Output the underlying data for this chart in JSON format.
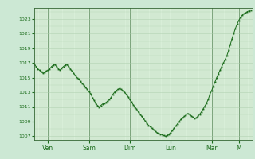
{
  "background_color": "#cce8d4",
  "plot_bg_color": "#d8eed8",
  "line_color": "#1a6b1a",
  "marker_color": "#1a6b1a",
  "grid_color": "#aaccaa",
  "tick_color": "#1a6b1a",
  "ylabel_values": [
    1007,
    1009,
    1011,
    1013,
    1015,
    1017,
    1019,
    1021,
    1023
  ],
  "ylim": [
    1006.5,
    1024.5
  ],
  "xlim": [
    0,
    128
  ],
  "x_ticks_pos": [
    8,
    32,
    56,
    80,
    104,
    120
  ],
  "x_tick_labels": [
    "Ven",
    "Sam",
    "Dim",
    "Lun",
    "Mar",
    "M"
  ],
  "day_lines": [
    8,
    32,
    56,
    80,
    104,
    120
  ],
  "pressure_data": [
    1016.8,
    1016.5,
    1016.2,
    1016.0,
    1015.8,
    1015.6,
    1015.7,
    1015.9,
    1016.0,
    1016.2,
    1016.5,
    1016.7,
    1016.8,
    1016.5,
    1016.2,
    1016.0,
    1016.3,
    1016.5,
    1016.7,
    1016.8,
    1016.5,
    1016.2,
    1015.9,
    1015.6,
    1015.3,
    1015.0,
    1014.8,
    1014.5,
    1014.2,
    1014.0,
    1013.7,
    1013.4,
    1013.1,
    1012.8,
    1012.3,
    1011.9,
    1011.5,
    1011.2,
    1011.0,
    1011.2,
    1011.4,
    1011.5,
    1011.6,
    1011.8,
    1012.0,
    1012.3,
    1012.7,
    1013.0,
    1013.2,
    1013.4,
    1013.5,
    1013.4,
    1013.2,
    1013.0,
    1012.7,
    1012.4,
    1012.0,
    1011.7,
    1011.3,
    1011.0,
    1010.7,
    1010.3,
    1010.0,
    1009.7,
    1009.4,
    1009.1,
    1008.8,
    1008.5,
    1008.3,
    1008.1,
    1007.9,
    1007.7,
    1007.5,
    1007.4,
    1007.3,
    1007.2,
    1007.1,
    1007.0,
    1007.1,
    1007.3,
    1007.5,
    1007.8,
    1008.1,
    1008.4,
    1008.7,
    1009.0,
    1009.3,
    1009.5,
    1009.7,
    1009.9,
    1010.1,
    1010.0,
    1009.8,
    1009.6,
    1009.4,
    1009.5,
    1009.7,
    1010.0,
    1010.3,
    1010.7,
    1011.1,
    1011.5,
    1012.0,
    1012.7,
    1013.2,
    1013.8,
    1014.4,
    1015.0,
    1015.5,
    1016.0,
    1016.5,
    1017.0,
    1017.5,
    1018.0,
    1018.7,
    1019.5,
    1020.3,
    1021.0,
    1021.7,
    1022.3,
    1022.8,
    1023.2,
    1023.5,
    1023.7,
    1023.8,
    1024.0,
    1024.1,
    1024.2
  ]
}
